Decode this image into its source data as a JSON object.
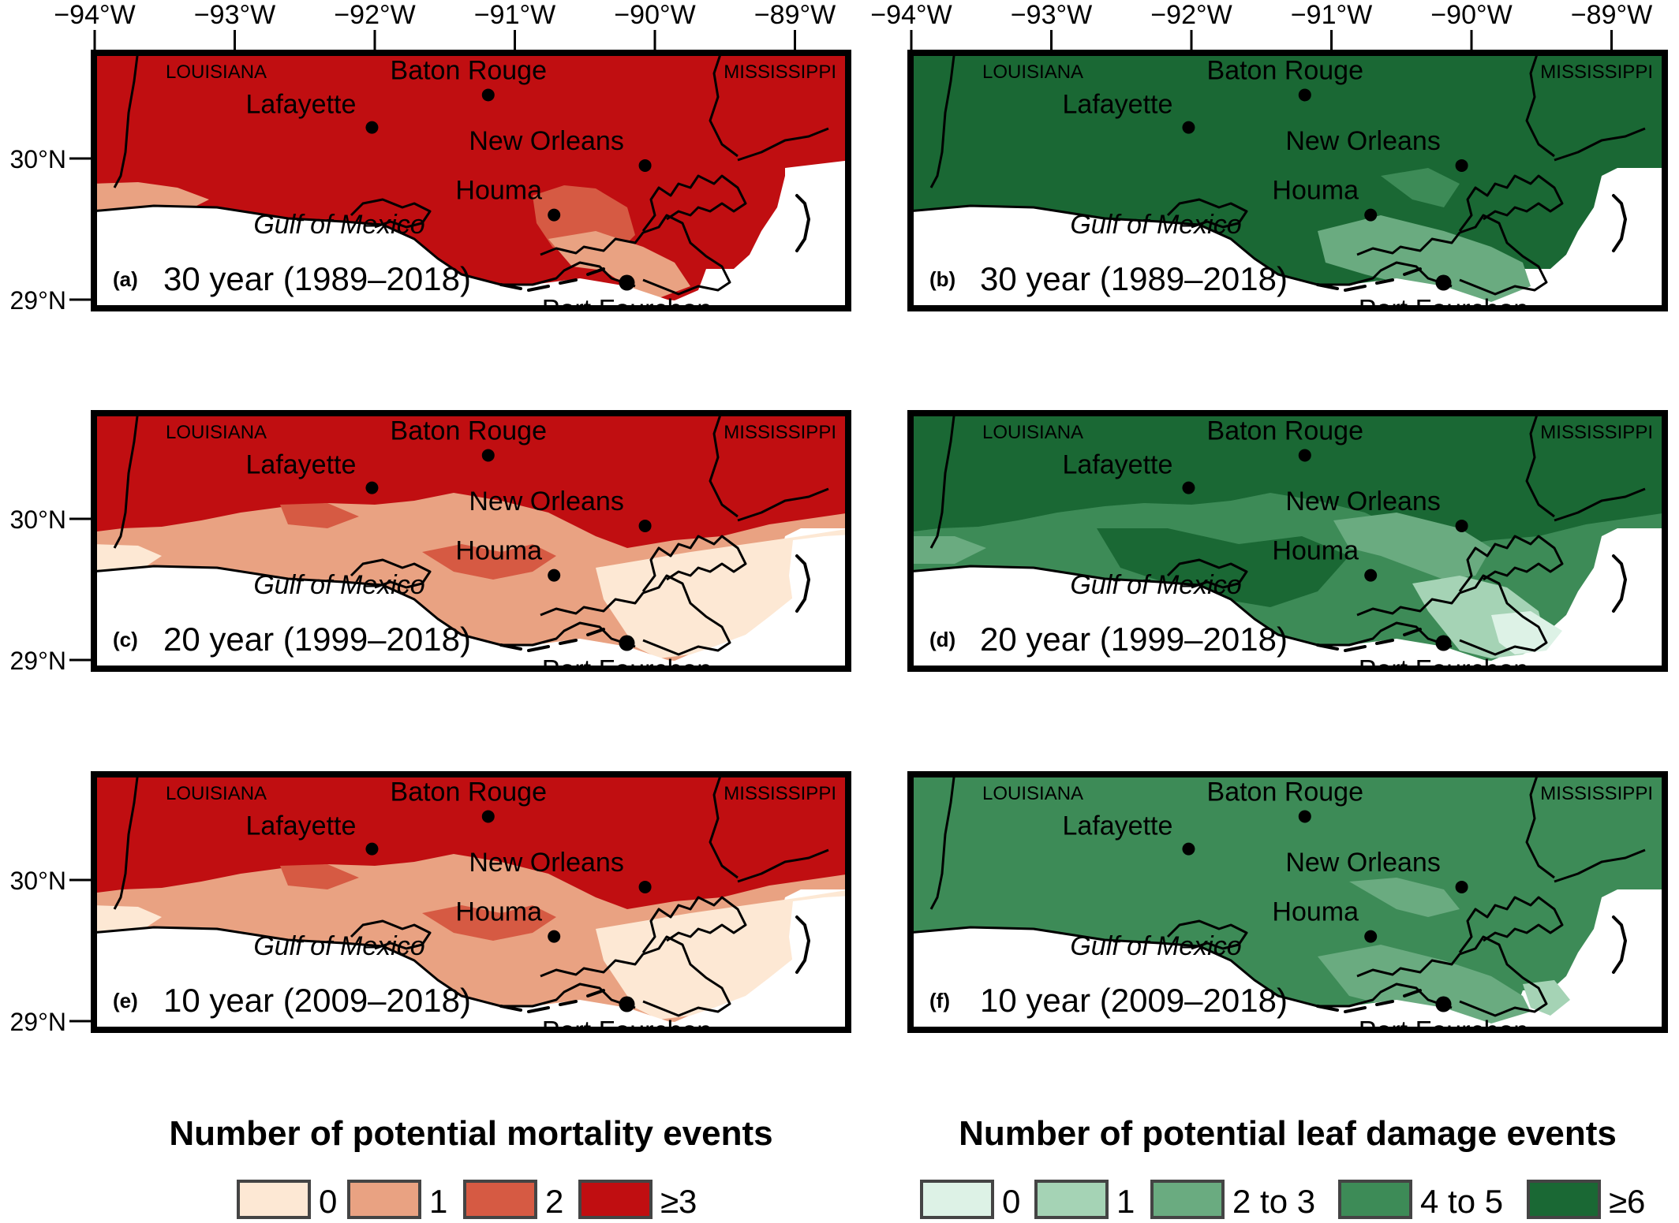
{
  "lon_ticks": [
    "−94°W",
    "−93°W",
    "−92°W",
    "−91°W",
    "−90°W",
    "−89°W"
  ],
  "lat_ticks": [
    "30°N",
    "29°N"
  ],
  "state_labels": {
    "west": "LOUISIANA",
    "east": "MISSISSIPPI"
  },
  "gulf_label": "Gulf of Mexico",
  "cities": [
    {
      "name": "Baton Rouge",
      "lon": -91.19,
      "lat": 30.45
    },
    {
      "name": "Lafayette",
      "lon": -92.02,
      "lat": 30.22
    },
    {
      "name": "New Orleans",
      "lon": -90.07,
      "lat": 29.95
    },
    {
      "name": "Houma",
      "lon": -90.72,
      "lat": 29.6
    },
    {
      "name": "Port Fourchon",
      "lon": -90.2,
      "lat": 29.12
    }
  ],
  "panels": [
    {
      "letter": "(a)",
      "period": "30 year (1989–2018)",
      "variable": "mortality"
    },
    {
      "letter": "(b)",
      "period": "30 year (1989–2018)",
      "variable": "leaf_damage"
    },
    {
      "letter": "(c)",
      "period": "20 year (1999–2018)",
      "variable": "mortality"
    },
    {
      "letter": "(d)",
      "period": "20 year (1999–2018)",
      "variable": "leaf_damage"
    },
    {
      "letter": "(e)",
      "period": "10 year (2009–2018)",
      "variable": "mortality"
    },
    {
      "letter": "(f)",
      "period": "10 year (2009–2018)",
      "variable": "leaf_damage"
    }
  ],
  "legends": {
    "mortality": {
      "title": "Number of potential mortality events",
      "classes": [
        {
          "label": "0",
          "color": "#fde8d4"
        },
        {
          "label": "1",
          "color": "#e9a282"
        },
        {
          "label": "2",
          "color": "#d65a43"
        },
        {
          "label": "≥3",
          "color": "#c00e11"
        }
      ]
    },
    "leaf_damage": {
      "title": "Number of potential leaf damage events",
      "classes": [
        {
          "label": "0",
          "color": "#ddf2e6"
        },
        {
          "label": "1",
          "color": "#a5d3b5"
        },
        {
          "label": "2 to 3",
          "color": "#6aab80"
        },
        {
          "label": "4 to 5",
          "color": "#3d8b57"
        },
        {
          "label": "≥6",
          "color": "#1a6834"
        }
      ]
    }
  }
}
